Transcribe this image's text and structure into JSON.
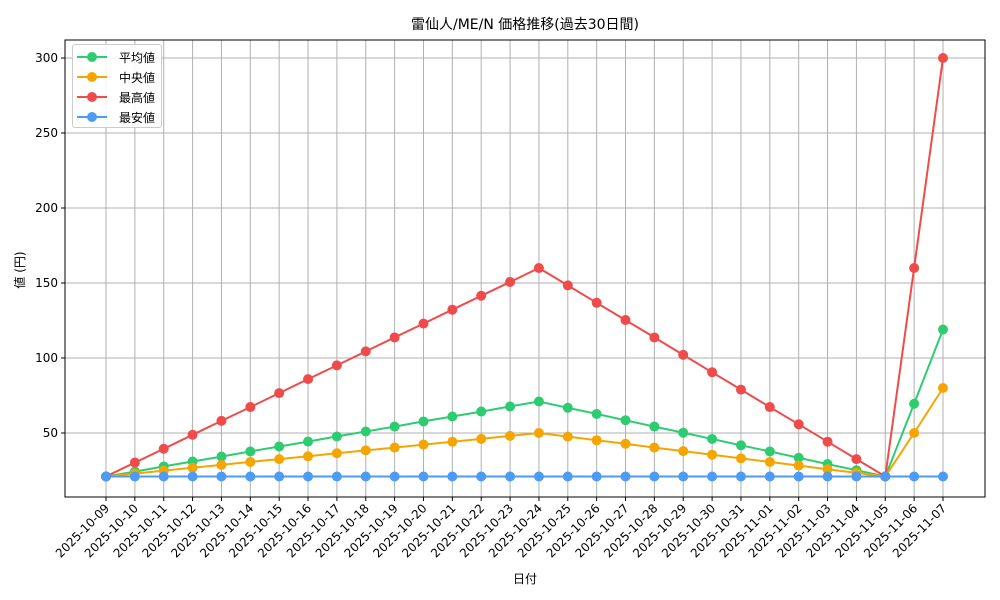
{
  "chart_data": {
    "type": "line",
    "title": "雷仙人/ME/N 価格推移(過去30日間)",
    "xlabel": "日付",
    "ylabel": "値 (円)",
    "ylim": [
      0.25,
      314
    ],
    "yticks": [
      50,
      100,
      150,
      200,
      250,
      300
    ],
    "grid": true,
    "legend_position": "upper left",
    "x": [
      "2025-10-09",
      "2025-10-10",
      "2025-10-11",
      "2025-10-12",
      "2025-10-13",
      "2025-10-14",
      "2025-10-15",
      "2025-10-16",
      "2025-10-17",
      "2025-10-18",
      "2025-10-19",
      "2025-10-20",
      "2025-10-21",
      "2025-10-22",
      "2025-10-23",
      "2025-10-24",
      "2025-10-25",
      "2025-10-26",
      "2025-10-27",
      "2025-10-28",
      "2025-10-29",
      "2025-10-30",
      "2025-10-31",
      "2025-11-01",
      "2025-11-02",
      "2025-11-03",
      "2025-11-04",
      "2025-11-05",
      "2025-11-06",
      "2025-11-07"
    ],
    "series": [
      {
        "name": "平均値",
        "color": "#2ecc71",
        "values": [
          21,
          24.3,
          27.7,
          31,
          34.3,
          37.7,
          41,
          44.3,
          47.7,
          51,
          54.3,
          57.7,
          61,
          64.3,
          67.7,
          71,
          66.8,
          62.7,
          58.5,
          54.3,
          50.2,
          46,
          41.8,
          37.7,
          33.5,
          29.3,
          25.2,
          21,
          69.5,
          119
        ]
      },
      {
        "name": "中央値",
        "color": "#f5a500",
        "values": [
          21,
          22.9,
          24.9,
          26.8,
          28.7,
          30.7,
          32.6,
          34.5,
          36.5,
          38.4,
          40.3,
          42.3,
          44.2,
          46.1,
          48.1,
          50,
          47.6,
          45.2,
          42.8,
          40.3,
          37.9,
          35.5,
          33.1,
          30.7,
          28.3,
          25.8,
          23.4,
          21,
          50,
          80
        ]
      },
      {
        "name": "最高値",
        "color": "#f04b4b",
        "values": [
          21,
          30.3,
          39.5,
          48.8,
          58.1,
          67.3,
          76.6,
          85.9,
          95.1,
          104.4,
          113.7,
          122.9,
          132.2,
          141.5,
          150.7,
          160,
          148.4,
          136.8,
          125.3,
          113.7,
          102.1,
          90.5,
          78.9,
          67.3,
          55.8,
          44.2,
          32.6,
          21,
          160,
          300
        ]
      },
      {
        "name": "最安値",
        "color": "#4c9bf5",
        "values": [
          21,
          21,
          21,
          21,
          21,
          21,
          21,
          21,
          21,
          21,
          21,
          21,
          21,
          21,
          21,
          21,
          21,
          21,
          21,
          21,
          21,
          21,
          21,
          21,
          21,
          21,
          21,
          21,
          21,
          21
        ]
      }
    ]
  },
  "legend": {
    "items": [
      {
        "label": "平均値",
        "color": "#2ecc71"
      },
      {
        "label": "中央値",
        "color": "#f5a500"
      },
      {
        "label": "最高値",
        "color": "#f04b4b"
      },
      {
        "label": "最安値",
        "color": "#4c9bf5"
      }
    ]
  }
}
